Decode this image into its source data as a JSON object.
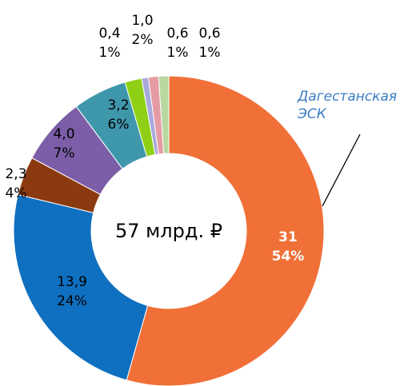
{
  "chart_data": {
    "type": "donut",
    "center_label": "57 млрд. ₽",
    "categories": [
      "Дагестанская ЭСК",
      null,
      null,
      null,
      null,
      null,
      null,
      null,
      null
    ],
    "values": [
      31,
      13.9,
      2.3,
      4.0,
      3.2,
      1.0,
      0.4,
      0.6,
      0.6
    ],
    "value_labels": [
      "31",
      "13,9",
      "2,3",
      "4,0",
      "3,2",
      "1,0",
      "0,4",
      "0,6",
      "0,6"
    ],
    "percent_labels": [
      "54%",
      "24%",
      "4%",
      "7%",
      "6%",
      "2%",
      "1%",
      "1%",
      "1%"
    ],
    "colors": [
      "#f07037",
      "#0f6fc0",
      "#8b3a0f",
      "#7b5ea7",
      "#3f97ac",
      "#8fd016",
      "#a9a9dd",
      "#e49ba3",
      "#b8d8a0"
    ]
  }
}
